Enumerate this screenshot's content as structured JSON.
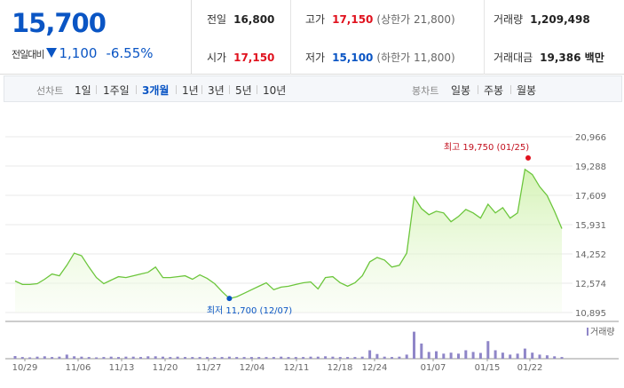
{
  "quote": {
    "price": "15,700",
    "change_label": "전일대비",
    "change_amount": "1,100",
    "change_rate": "-6.55%",
    "prev_label": "전일",
    "prev_value": "16,800",
    "high_label": "고가",
    "high_value": "17,150",
    "high_limit": "(상한가 21,800)",
    "volume_label": "거래량",
    "volume_value": "1,209,498",
    "open_label": "시가",
    "open_value": "17,150",
    "low_label": "저가",
    "low_value": "15,100",
    "low_limit": "(하한가 11,800)",
    "amount_label": "거래대금",
    "amount_value": "19,386 백만"
  },
  "toolbar": {
    "line_label": "선차트",
    "periods": [
      "1일",
      "1주일",
      "3개월",
      "1년",
      "3년",
      "5년",
      "10년"
    ],
    "active_period": "3개월",
    "candle_label": "봉차트",
    "candles": [
      "일봉",
      "주봉",
      "월봉"
    ]
  },
  "colors": {
    "up": "#e0121e",
    "down": "#0a55c4",
    "line": "#6cc63c",
    "volume": "#8f86c8"
  },
  "chart_data": {
    "type": "area",
    "y_ticks": [
      "20,966",
      "19,288",
      "17,609",
      "15,931",
      "14,252",
      "12,574",
      "10,895"
    ],
    "ylim": [
      10895,
      20966
    ],
    "x_ticks": [
      "10/29",
      "11/06",
      "11/13",
      "11/20",
      "11/27",
      "12/04",
      "12/11",
      "12/18",
      "12/24",
      "01/07",
      "01/15",
      "01/22"
    ],
    "annotations": {
      "high": "최고 19,750 (01/25)",
      "low": "최저 11,700 (12/07)"
    },
    "volume_legend": "거래량",
    "series": [
      {
        "values": [
          12700,
          12500,
          12500,
          12550,
          12800,
          13100,
          13000,
          13600,
          14300,
          14150,
          13500,
          12900,
          12550,
          12750,
          12950,
          12900,
          13000,
          13100,
          13200,
          13500,
          12900,
          12900,
          12950,
          13000,
          12800,
          13050,
          12850,
          12550,
          12100,
          11700,
          11800,
          12000,
          12200,
          12400,
          12600,
          12200,
          12350,
          12400,
          12500,
          12600,
          12650,
          12250,
          12900,
          12950,
          12600,
          12400,
          12600,
          13000,
          13800,
          14050,
          13900,
          13500,
          13600,
          14300,
          17500,
          16850,
          16500,
          16700,
          16600,
          16100,
          16400,
          16800,
          16600,
          16300,
          17100,
          16600,
          16900,
          16300,
          16600,
          19100,
          18800,
          18100,
          17600,
          16700,
          15700
        ]
      },
      {
        "name": "거래량",
        "values": [
          0.08,
          0.05,
          0.04,
          0.06,
          0.07,
          0.05,
          0.06,
          0.12,
          0.07,
          0.06,
          0.05,
          0.04,
          0.05,
          0.06,
          0.05,
          0.06,
          0.06,
          0.05,
          0.07,
          0.07,
          0.06,
          0.05,
          0.06,
          0.05,
          0.05,
          0.05,
          0.05,
          0.05,
          0.05,
          0.06,
          0.05,
          0.05,
          0.05,
          0.05,
          0.05,
          0.05,
          0.06,
          0.05,
          0.05,
          0.05,
          0.06,
          0.06,
          0.07,
          0.06,
          0.05,
          0.05,
          0.05,
          0.06,
          0.25,
          0.14,
          0.06,
          0.05,
          0.06,
          0.12,
          0.8,
          0.45,
          0.2,
          0.22,
          0.15,
          0.18,
          0.15,
          0.25,
          0.2,
          0.17,
          0.52,
          0.25,
          0.18,
          0.12,
          0.15,
          0.3,
          0.18,
          0.12,
          0.1,
          0.07,
          0.05
        ]
      }
    ]
  }
}
